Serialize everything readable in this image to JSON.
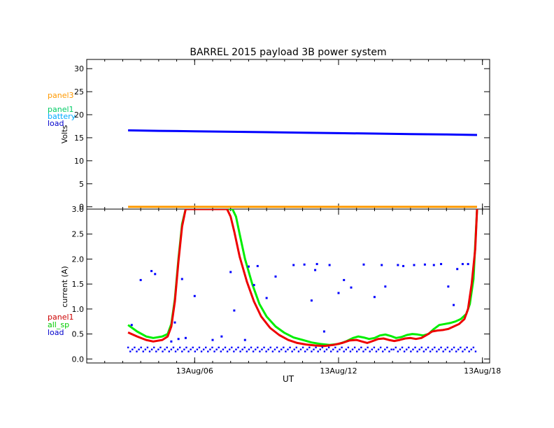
{
  "title": "BARREL 2015 payload 3B power system",
  "chart_data": [
    {
      "type": "line",
      "id": "voltage",
      "ylabel": "Volts",
      "xlim": [
        -2.0,
        20.4
      ],
      "ylim": [
        -0.5,
        32
      ],
      "yticks": [
        0,
        5,
        10,
        15,
        20,
        25,
        30
      ],
      "ytick_labels": [
        "0",
        "5",
        "10",
        "15",
        "20",
        "25",
        "30"
      ],
      "legend": [
        {
          "name": "panel3",
          "color": "#FF9900"
        },
        {
          "name": "panel1",
          "color": "#00CC66"
        },
        {
          "name": "battery",
          "color": "#00AAFF"
        },
        {
          "name": "load",
          "color": "#0000CC"
        }
      ],
      "series": [
        {
          "name": "load",
          "color": "#0000FF",
          "x": [
            0.3,
            2,
            4,
            6,
            8,
            10,
            12,
            14,
            16,
            18,
            19.7
          ],
          "y": [
            16.6,
            16.5,
            16.4,
            16.3,
            16.2,
            16.1,
            16.0,
            15.9,
            15.8,
            15.7,
            15.6
          ]
        },
        {
          "name": "panel3",
          "color": "#FF9900",
          "x": [
            0.3,
            19.7
          ],
          "y": [
            0.0,
            0.0
          ]
        }
      ]
    },
    {
      "type": "line",
      "id": "current",
      "ylabel": "current (A)",
      "xlabel": "UT",
      "xlim": [
        -2.0,
        20.4
      ],
      "ylim": [
        -0.08,
        3.0
      ],
      "yticks": [
        0.0,
        0.5,
        1.0,
        1.5,
        2.0,
        2.5,
        3.0
      ],
      "ytick_labels": [
        "0.0",
        "0.5",
        "1.0",
        "1.5",
        "2.0",
        "2.5",
        "3.0"
      ],
      "xticks": [
        4,
        12,
        20
      ],
      "xtick_labels": [
        "13Aug/06",
        "13Aug/12",
        "13Aug/18"
      ],
      "legend": [
        {
          "name": "panel1",
          "color": "#CC0000"
        },
        {
          "name": "all_sp",
          "color": "#00CC00"
        },
        {
          "name": "load",
          "color": "#0000CC"
        }
      ],
      "series": [
        {
          "name": "all_sp",
          "color": "#00EE00",
          "x": [
            0.3,
            0.8,
            1.3,
            1.7,
            2.2,
            2.5,
            2.7,
            2.9,
            3.1,
            3.3,
            3.5,
            3.7,
            6.1,
            6.3,
            6.5,
            6.8,
            7.2,
            7.6,
            8.0,
            8.5,
            9.0,
            9.5,
            10.0,
            10.5,
            11.0,
            11.5,
            12.0,
            12.4,
            12.8,
            13.1,
            13.4,
            13.7,
            14.0,
            14.3,
            14.6,
            14.9,
            15.2,
            15.5,
            15.8,
            16.1,
            16.4,
            16.7,
            17.0,
            17.3,
            17.6,
            17.9,
            18.2,
            18.5,
            18.8,
            19.1,
            19.3,
            19.5,
            19.7
          ],
          "y": [
            0.68,
            0.55,
            0.45,
            0.42,
            0.45,
            0.5,
            0.7,
            1.2,
            2.0,
            2.7,
            3.0,
            3.0,
            3.0,
            2.85,
            2.5,
            2.0,
            1.5,
            1.1,
            0.85,
            0.65,
            0.52,
            0.43,
            0.38,
            0.33,
            0.3,
            0.28,
            0.3,
            0.35,
            0.42,
            0.45,
            0.43,
            0.4,
            0.42,
            0.47,
            0.49,
            0.46,
            0.42,
            0.44,
            0.48,
            0.5,
            0.49,
            0.47,
            0.5,
            0.6,
            0.68,
            0.7,
            0.72,
            0.75,
            0.8,
            0.9,
            1.1,
            1.6,
            3.0
          ]
        },
        {
          "name": "panel1",
          "color": "#EE0000",
          "x": [
            0.3,
            0.8,
            1.3,
            1.7,
            2.2,
            2.5,
            2.7,
            2.9,
            3.1,
            3.3,
            3.5,
            3.7,
            5.8,
            6.0,
            6.2,
            6.5,
            6.9,
            7.3,
            7.7,
            8.2,
            8.7,
            9.2,
            9.7,
            10.2,
            10.7,
            11.2,
            11.7,
            12.2,
            12.6,
            13.0,
            13.3,
            13.6,
            13.9,
            14.2,
            14.5,
            14.8,
            15.1,
            15.4,
            15.7,
            16.0,
            16.3,
            16.6,
            16.9,
            17.2,
            17.5,
            17.8,
            18.1,
            18.4,
            18.7,
            19.0,
            19.2,
            19.4,
            19.6,
            19.7
          ],
          "y": [
            0.53,
            0.45,
            0.38,
            0.35,
            0.38,
            0.45,
            0.65,
            1.15,
            1.95,
            2.65,
            3.0,
            3.0,
            3.0,
            2.85,
            2.55,
            2.05,
            1.55,
            1.15,
            0.85,
            0.62,
            0.48,
            0.38,
            0.32,
            0.29,
            0.27,
            0.26,
            0.28,
            0.32,
            0.37,
            0.38,
            0.35,
            0.32,
            0.36,
            0.4,
            0.41,
            0.38,
            0.36,
            0.38,
            0.41,
            0.42,
            0.4,
            0.42,
            0.48,
            0.55,
            0.57,
            0.58,
            0.6,
            0.65,
            0.7,
            0.8,
            1.0,
            1.5,
            2.2,
            3.0
          ]
        },
        {
          "name": "load",
          "color": "#0000FF",
          "kind": "scatter",
          "x": [
            0.5,
            1.0,
            1.6,
            1.8,
            2.7,
            2.9,
            3.1,
            3.3,
            3.5,
            4.0,
            5.0,
            5.5,
            6.0,
            6.2,
            6.8,
            7.0,
            7.3,
            7.5,
            8.0,
            8.5,
            9.5,
            10.1,
            10.5,
            10.7,
            10.8,
            11.2,
            11.5,
            12.0,
            12.3,
            12.7,
            13.4,
            14.0,
            14.4,
            14.6,
            15.3,
            15.6,
            16.2,
            16.8,
            17.3,
            17.7,
            18.1,
            18.4,
            18.6,
            18.9,
            19.2
          ],
          "y": [
            0.68,
            1.58,
            1.76,
            1.7,
            0.35,
            0.73,
            0.4,
            1.6,
            0.42,
            1.26,
            0.38,
            0.45,
            1.74,
            0.97,
            0.38,
            1.85,
            1.48,
            1.86,
            1.22,
            1.65,
            1.88,
            1.89,
            1.17,
            1.78,
            1.9,
            0.55,
            1.88,
            1.32,
            1.58,
            1.43,
            1.89,
            1.24,
            1.88,
            1.45,
            1.88,
            1.86,
            1.88,
            1.89,
            1.88,
            1.9,
            1.45,
            1.08,
            1.8,
            1.9,
            1.9
          ]
        }
      ]
    }
  ]
}
